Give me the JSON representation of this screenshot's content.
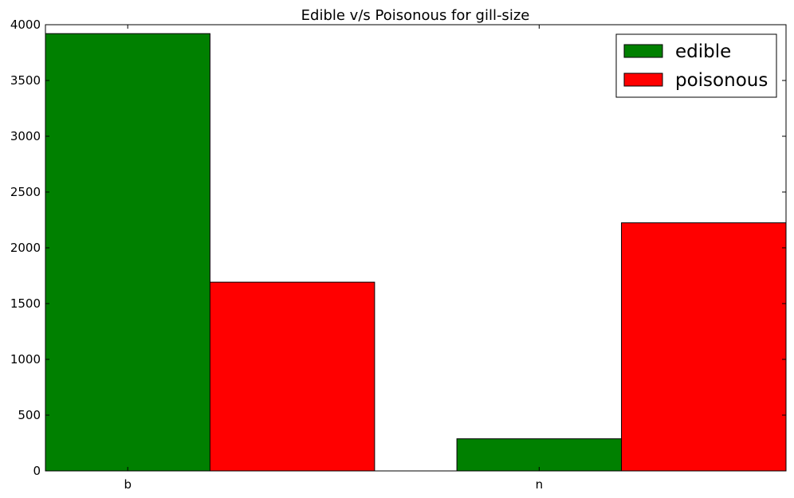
{
  "chart_data": {
    "type": "bar",
    "title": "Edible v/s Poisonous for gill-size",
    "xlabel": "",
    "ylabel": "",
    "categories": [
      "b",
      "n"
    ],
    "series": [
      {
        "name": "edible",
        "values": [
          3920,
          288
        ],
        "color": "#008000"
      },
      {
        "name": "poisonous",
        "values": [
          1692,
          2224
        ],
        "color": "#ff0000"
      }
    ],
    "ylim": [
      0,
      4000
    ],
    "yticks": [
      0,
      500,
      1000,
      1500,
      2000,
      2500,
      3000,
      3500,
      4000
    ],
    "grid": false,
    "legend_position": "top-right"
  }
}
